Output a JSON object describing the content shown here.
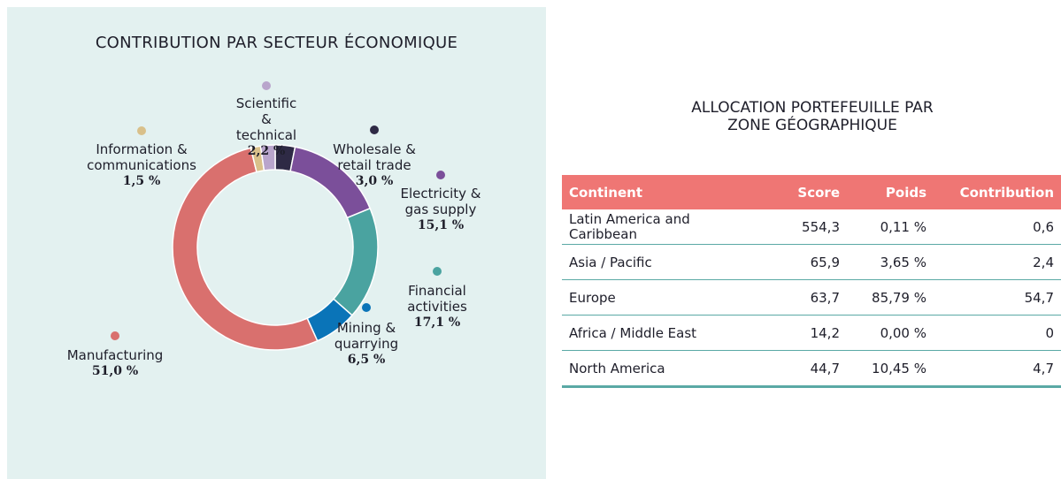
{
  "chart_data": {
    "type": "donut",
    "title": "CONTRIBUTION PAR SECTEUR ÉCONOMIQUE",
    "categories": [
      "Wholesale & retail trade",
      "Electricity & gas supply",
      "Financial activities",
      "Mining & quarrying",
      "Manufacturing",
      "Information & communications",
      "Scientific & technical"
    ],
    "values": [
      3.0,
      15.1,
      17.1,
      6.5,
      51.0,
      1.5,
      2.2
    ],
    "value_labels": [
      "3,0 %",
      "15,1 %",
      "17,1 %",
      "6,5 %",
      "51,0 %",
      "1,5 %",
      "2,2 %"
    ],
    "colors": [
      "#2e2a45",
      "#7b4f9a",
      "#4aa3a0",
      "#0a74b8",
      "#d9706e",
      "#d9c08a",
      "#b9a5cc"
    ]
  },
  "table": {
    "title": "ALLOCATION PORTEFEUILLE PAR ZONE GÉOGRAPHIQUE",
    "header": [
      "Continent",
      "Score",
      "Poids",
      "Contribution"
    ],
    "rows": [
      [
        "Latin America and Caribbean",
        "554,3",
        "0,11 %",
        "0,6"
      ],
      [
        "Asia / Pacific",
        "65,9",
        "3,65 %",
        "2,4"
      ],
      [
        "Europe",
        "63,7",
        "85,79 %",
        "54,7"
      ],
      [
        "Africa / Middle East",
        "14,2",
        "0,00 %",
        "0"
      ],
      [
        "North America",
        "44,7",
        "10,45 %",
        "4,7"
      ]
    ]
  }
}
